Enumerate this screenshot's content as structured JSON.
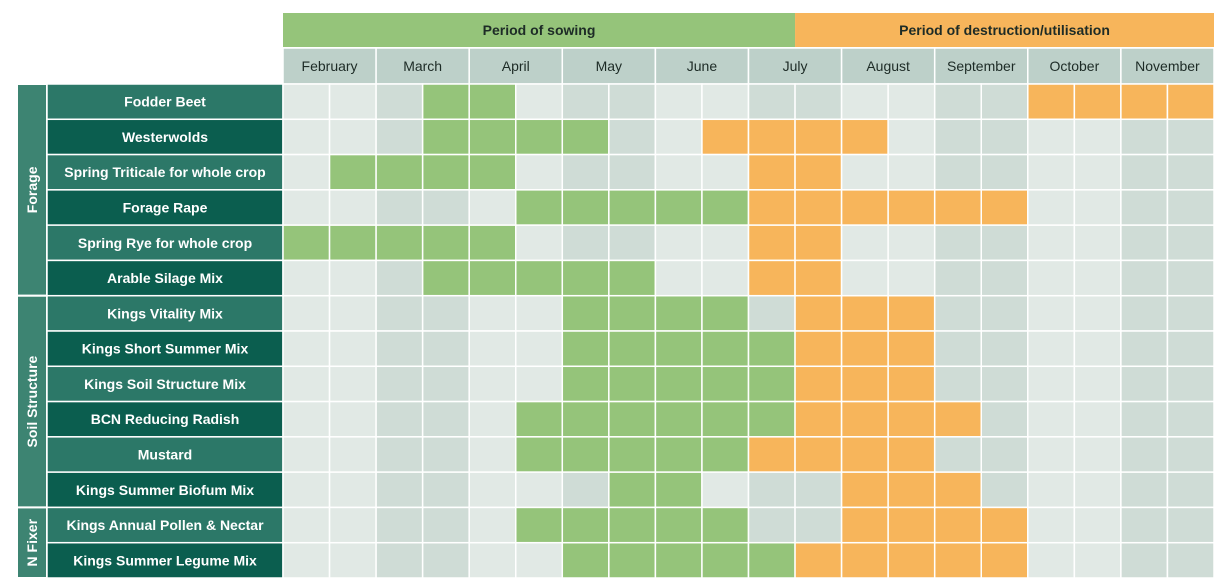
{
  "chart_data": {
    "type": "table",
    "header": {
      "sowing_label": "Period of sowing",
      "destruction_label": "Period of destruction/utilisation"
    },
    "months": [
      "February",
      "March",
      "April",
      "May",
      "June",
      "July",
      "August",
      "September",
      "October",
      "November"
    ],
    "periods_per_month": 2,
    "legend_codes": {
      "0": "none",
      "1": "sowing",
      "2": "destruction/utilisation"
    },
    "colors": {
      "sowing": "#95c47a",
      "destruction": "#f7b55b",
      "cell_light": "#e1e9e5",
      "cell_dark": "#cfdcd6",
      "month_bg": "#bdd0c9",
      "crop_dark": "#0b5e4f",
      "crop_light": "#2c7868",
      "group_bg": "#3d8472",
      "grid_line": "#ffffff"
    },
    "groups": [
      {
        "name": "Forage",
        "crops": [
          {
            "name": "Fodder Beet",
            "periods": [
              0,
              0,
              0,
              1,
              1,
              0,
              0,
              0,
              0,
              0,
              0,
              0,
              0,
              0,
              0,
              0,
              2,
              2,
              2,
              2
            ]
          },
          {
            "name": "Westerwolds",
            "periods": [
              0,
              0,
              0,
              1,
              1,
              1,
              1,
              0,
              0,
              2,
              2,
              2,
              2,
              0,
              0,
              0,
              0,
              0,
              0,
              0
            ]
          },
          {
            "name": "Spring Triticale for whole crop",
            "periods": [
              0,
              1,
              1,
              1,
              1,
              0,
              0,
              0,
              0,
              0,
              2,
              2,
              0,
              0,
              0,
              0,
              0,
              0,
              0,
              0
            ]
          },
          {
            "name": "Forage Rape",
            "periods": [
              0,
              0,
              0,
              0,
              0,
              1,
              1,
              1,
              1,
              1,
              2,
              2,
              2,
              2,
              2,
              2,
              0,
              0,
              0,
              0
            ]
          },
          {
            "name": "Spring Rye for whole crop",
            "periods": [
              1,
              1,
              1,
              1,
              1,
              0,
              0,
              0,
              0,
              0,
              2,
              2,
              0,
              0,
              0,
              0,
              0,
              0,
              0,
              0
            ]
          },
          {
            "name": "Arable Silage Mix",
            "periods": [
              0,
              0,
              0,
              1,
              1,
              1,
              1,
              1,
              0,
              0,
              2,
              2,
              0,
              0,
              0,
              0,
              0,
              0,
              0,
              0
            ]
          }
        ]
      },
      {
        "name": "Soil Structure",
        "crops": [
          {
            "name": "Kings Vitality Mix",
            "periods": [
              0,
              0,
              0,
              0,
              0,
              0,
              1,
              1,
              1,
              1,
              0,
              2,
              2,
              2,
              0,
              0,
              0,
              0,
              0,
              0
            ]
          },
          {
            "name": "Kings Short Summer Mix",
            "periods": [
              0,
              0,
              0,
              0,
              0,
              0,
              1,
              1,
              1,
              1,
              1,
              2,
              2,
              2,
              0,
              0,
              0,
              0,
              0,
              0
            ]
          },
          {
            "name": "Kings Soil Structure Mix",
            "periods": [
              0,
              0,
              0,
              0,
              0,
              0,
              1,
              1,
              1,
              1,
              1,
              2,
              2,
              2,
              0,
              0,
              0,
              0,
              0,
              0
            ]
          },
          {
            "name": "BCN Reducing Radish",
            "periods": [
              0,
              0,
              0,
              0,
              0,
              1,
              1,
              1,
              1,
              1,
              1,
              2,
              2,
              2,
              2,
              0,
              0,
              0,
              0,
              0
            ]
          },
          {
            "name": "Mustard",
            "periods": [
              0,
              0,
              0,
              0,
              0,
              1,
              1,
              1,
              1,
              1,
              2,
              2,
              2,
              2,
              0,
              0,
              0,
              0,
              0,
              0
            ]
          },
          {
            "name": "Kings Summer Biofum Mix",
            "periods": [
              0,
              0,
              0,
              0,
              0,
              0,
              0,
              1,
              1,
              0,
              0,
              0,
              2,
              2,
              2,
              0,
              0,
              0,
              0,
              0
            ]
          }
        ]
      },
      {
        "name": "N Fixer",
        "crops": [
          {
            "name": "Kings Annual Pollen & Nectar",
            "periods": [
              0,
              0,
              0,
              0,
              0,
              1,
              1,
              1,
              1,
              1,
              0,
              0,
              2,
              2,
              2,
              2,
              0,
              0,
              0,
              0
            ]
          },
          {
            "name": "Kings Summer Legume Mix",
            "periods": [
              0,
              0,
              0,
              0,
              0,
              0,
              1,
              1,
              1,
              1,
              1,
              2,
              2,
              2,
              2,
              2,
              0,
              0,
              0,
              0
            ]
          }
        ]
      }
    ]
  }
}
